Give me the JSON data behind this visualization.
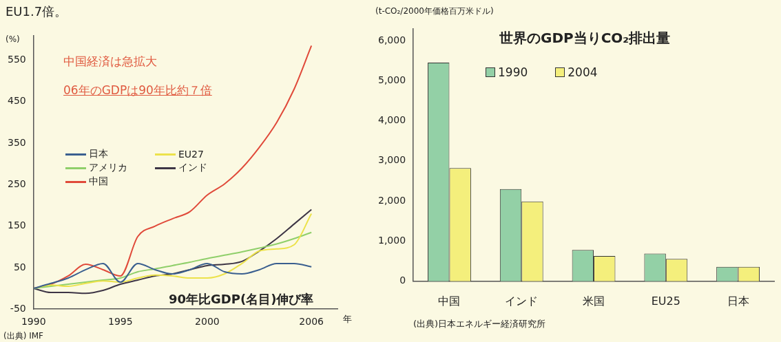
{
  "chart_data": [
    {
      "type": "line",
      "title": "90年比GDP(名目)伸び率",
      "ylabel": "(%)",
      "xlabel": "年",
      "annotations": [
        "EU1.7倍。",
        "中国経済は急拡大",
        "06年のGDPは90年比約７倍",
        "(出典) IMF"
      ],
      "x": [
        1990,
        1991,
        1992,
        1993,
        1994,
        1995,
        1996,
        1997,
        1998,
        1999,
        2000,
        2001,
        2002,
        2003,
        2004,
        2005,
        2006
      ],
      "xlim": [
        1990,
        2007.5
      ],
      "xticks": [
        1990,
        1995,
        2000,
        2006
      ],
      "ylim": [
        -50,
        610
      ],
      "yticks": [
        -50,
        50,
        150,
        250,
        350,
        450,
        550
      ],
      "legend": "top left",
      "series": [
        {
          "name": "日本",
          "color": "#3a5f8f",
          "values": [
            0,
            12,
            25,
            45,
            60,
            15,
            60,
            45,
            35,
            45,
            60,
            40,
            35,
            45,
            60,
            60,
            52
          ]
        },
        {
          "name": "EU27",
          "color": "#ece24a",
          "values": [
            0,
            8,
            5,
            12,
            18,
            15,
            25,
            32,
            30,
            25,
            25,
            35,
            60,
            90,
            95,
            105,
            180
          ]
        },
        {
          "name": "アメリカ",
          "color": "#8fcf6a",
          "values": [
            0,
            5,
            10,
            15,
            20,
            25,
            40,
            47,
            55,
            63,
            72,
            80,
            88,
            97,
            107,
            120,
            135
          ]
        },
        {
          "name": "インド",
          "color": "#3d3545",
          "values": [
            0,
            -10,
            -10,
            -12,
            -5,
            10,
            20,
            30,
            35,
            45,
            55,
            58,
            65,
            90,
            120,
            155,
            190
          ]
        },
        {
          "name": "中国",
          "color": "#e04a3a",
          "values": [
            0,
            10,
            30,
            58,
            45,
            30,
            125,
            150,
            168,
            185,
            225,
            252,
            290,
            340,
            400,
            480,
            585
          ]
        }
      ]
    },
    {
      "type": "bar",
      "title": "世界のGDP当りCO₂排出量",
      "ylabel": "(t-CO₂/2000年価格百万米ドル)",
      "annotations": [
        "(出典)日本エネルギー経済研究所"
      ],
      "categories": [
        "中国",
        "インド",
        "米国",
        "EU25",
        "日本"
      ],
      "ylim": [
        0,
        6300
      ],
      "yticks": [
        0,
        {
          "value": 1000,
          "label": "1,000"
        },
        {
          "value": 2000,
          "label": "2,000"
        },
        {
          "value": 3000,
          "label": "3,000"
        },
        {
          "value": 4000,
          "label": "4,000"
        },
        {
          "value": 5000,
          "label": "5,000"
        },
        {
          "value": 6000,
          "label": "6,000"
        }
      ],
      "legend": "top left",
      "series": [
        {
          "name": "1990",
          "color": "#93d0a6",
          "values": [
            5450,
            2300,
            780,
            690,
            360
          ]
        },
        {
          "name": "2004",
          "color": "#f4ef7c",
          "values": [
            2820,
            1990,
            630,
            560,
            360
          ]
        }
      ]
    }
  ]
}
